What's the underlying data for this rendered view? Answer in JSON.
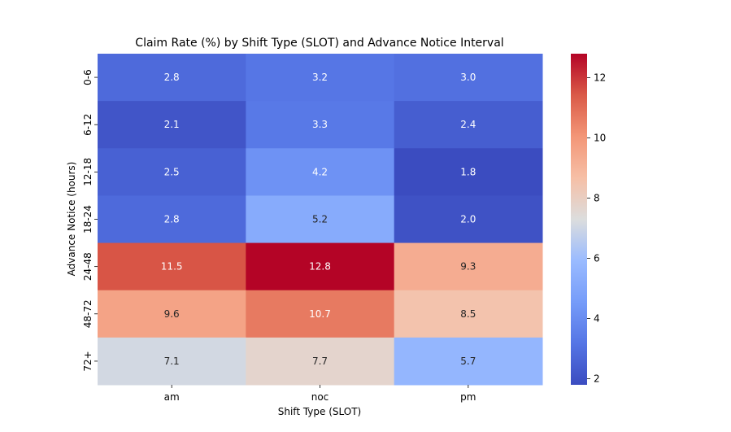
{
  "chart_data": {
    "type": "heatmap",
    "title": "Claim Rate (%) by Shift Type (SLOT) and Advance Notice Interval",
    "xlabel": "Shift Type (SLOT)",
    "ylabel": "Advance Notice (hours)",
    "x_categories": [
      "am",
      "noc",
      "pm"
    ],
    "y_categories": [
      "0-6",
      "6-12",
      "12-18",
      "18-24",
      "24-48",
      "48-72",
      "72+"
    ],
    "values": [
      [
        2.8,
        3.2,
        3.0
      ],
      [
        2.1,
        3.3,
        2.4
      ],
      [
        2.5,
        4.2,
        1.8
      ],
      [
        2.8,
        5.2,
        2.0
      ],
      [
        11.5,
        12.8,
        9.3
      ],
      [
        9.6,
        10.7,
        8.5
      ],
      [
        7.1,
        7.7,
        5.7
      ]
    ],
    "colorbar": {
      "colormap": "coolwarm",
      "range": [
        1.8,
        12.8
      ],
      "ticks": [
        2,
        4,
        6,
        8,
        10,
        12
      ]
    }
  }
}
